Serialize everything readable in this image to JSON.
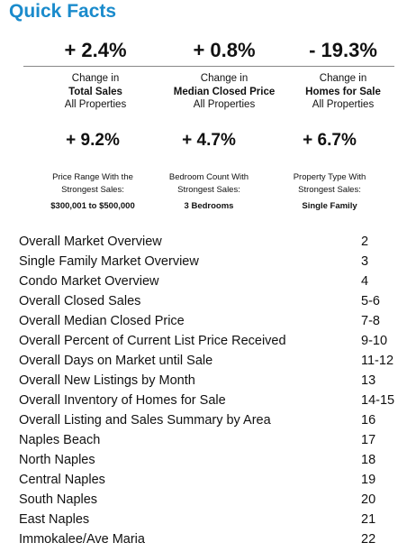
{
  "header": {
    "title": "Quick Facts"
  },
  "stats_primary": [
    {
      "value": "+ 2.4%",
      "lines": [
        "Change in",
        "Total Sales",
        "All Properties"
      ]
    },
    {
      "value": "+ 0.8%",
      "lines": [
        "Change in",
        "Median Closed Price",
        "All Properties"
      ]
    },
    {
      "value": "- 19.3%",
      "lines": [
        "Change in",
        "Homes for Sale",
        "All Properties"
      ]
    }
  ],
  "stats_secondary": [
    {
      "value": "+ 9.2%",
      "lines": [
        "Price Range With the",
        "Strongest Sales:"
      ],
      "detail": "$300,001 to $500,000"
    },
    {
      "value": "+ 4.7%",
      "lines": [
        "Bedroom Count With",
        "Strongest Sales:"
      ],
      "detail": "3 Bedrooms"
    },
    {
      "value": "+ 6.7%",
      "lines": [
        "Property Type With",
        "Strongest Sales:"
      ],
      "detail": "Single Family"
    }
  ],
  "contents": [
    {
      "title": "Overall Market Overview",
      "page": "2"
    },
    {
      "title": "Single Family Market Overview",
      "page": "3"
    },
    {
      "title": "Condo Market Overview",
      "page": "4"
    },
    {
      "title": "Overall Closed Sales",
      "page": "5-6"
    },
    {
      "title": "Overall Median Closed Price",
      "page": "7-8"
    },
    {
      "title": "Overall Percent of Current List Price Received",
      "page": "9-10"
    },
    {
      "title": "Overall Days on Market until Sale",
      "page": "11-12"
    },
    {
      "title": "Overall New Listings by Month",
      "page": "13"
    },
    {
      "title": "Overall Inventory of Homes for Sale",
      "page": "14-15"
    },
    {
      "title": "Overall Listing and Sales Summary by Area",
      "page": "16"
    },
    {
      "title": "Naples Beach",
      "page": "17"
    },
    {
      "title": "North Naples",
      "page": "18"
    },
    {
      "title": "Central Naples",
      "page": "19"
    },
    {
      "title": "South Naples",
      "page": "20"
    },
    {
      "title": "East Naples",
      "page": "21"
    },
    {
      "title": "Immokalee/Ave Maria",
      "page": "22"
    }
  ]
}
